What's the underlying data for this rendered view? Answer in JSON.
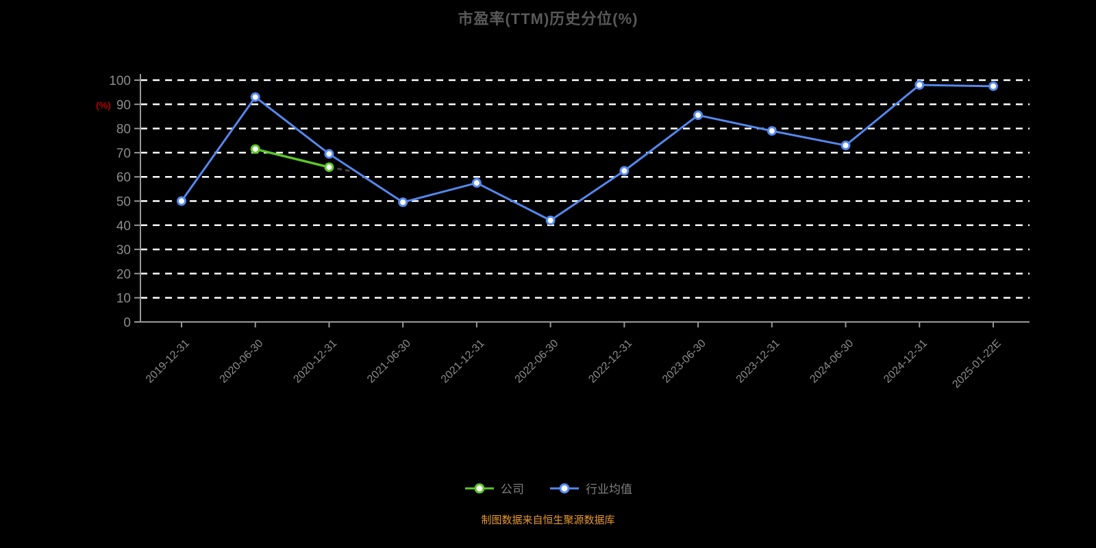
{
  "footer": {
    "source_note": "制图数据来自恒生聚源数据库"
  },
  "colors": {
    "background": "#000000",
    "title": "#595959",
    "axis": "#999999",
    "grid": "#ffffff",
    "tick_label": "#8c8c8c",
    "ylabel": "#ff0000",
    "footer": "#e8992c",
    "legend_label": "#808080",
    "company": "#5ec727",
    "industry": "#5588ee",
    "tail": "#444444"
  },
  "chart_data": {
    "type": "line",
    "title": "市盈率(TTM)历史分位(%)",
    "ylabel": "(%)",
    "xlabel": "",
    "ylim": [
      0,
      100
    ],
    "ytick_step": 10,
    "grid": "horizontal-dashed",
    "legend_position": "bottom",
    "x_label_rotation_deg": 45,
    "categories": [
      "2019-12-31",
      "2020-06-30",
      "2020-12-31",
      "2021-06-30",
      "2021-12-31",
      "2022-06-30",
      "2022-12-31",
      "2023-06-30",
      "2023-12-31",
      "2024-06-30",
      "2024-12-31",
      "2025-01-22E"
    ],
    "series": [
      {
        "name": "公司",
        "key": "company",
        "color_key": "company",
        "values": [
          null,
          71.5,
          64,
          null,
          null,
          null,
          null,
          null,
          null,
          null,
          null,
          null
        ],
        "dashed_tail": {
          "steps": 0.28,
          "end_value": 62.5
        }
      },
      {
        "name": "行业均值",
        "key": "industry",
        "color_key": "industry",
        "values": [
          50,
          93,
          69.5,
          49.5,
          57.5,
          42,
          62.5,
          85.5,
          79,
          73,
          98,
          97.5
        ]
      }
    ]
  },
  "legend": {
    "items": [
      {
        "key": "company",
        "label": "公司",
        "color_key": "company"
      },
      {
        "key": "industry",
        "label": "行业均值",
        "color_key": "industry"
      }
    ]
  }
}
